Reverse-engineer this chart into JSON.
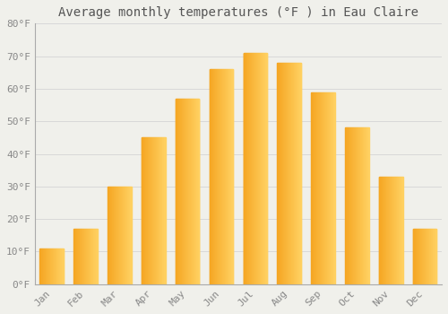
{
  "title": "Average monthly temperatures (°F ) in Eau Claire",
  "months": [
    "Jan",
    "Feb",
    "Mar",
    "Apr",
    "May",
    "Jun",
    "Jul",
    "Aug",
    "Sep",
    "Oct",
    "Nov",
    "Dec"
  ],
  "values": [
    11,
    17,
    30,
    45,
    57,
    66,
    71,
    68,
    59,
    48,
    33,
    17
  ],
  "bar_color_left": "#F5A623",
  "bar_color_right": "#FFD060",
  "ylim": [
    0,
    80
  ],
  "yticks": [
    0,
    10,
    20,
    30,
    40,
    50,
    60,
    70,
    80
  ],
  "ytick_labels": [
    "0°F",
    "10°F",
    "20°F",
    "30°F",
    "40°F",
    "50°F",
    "60°F",
    "70°F",
    "80°F"
  ],
  "background_color": "#f0f0eb",
  "grid_color": "#d8d8d8",
  "title_fontsize": 10,
  "tick_fontsize": 8,
  "bar_width": 0.7
}
